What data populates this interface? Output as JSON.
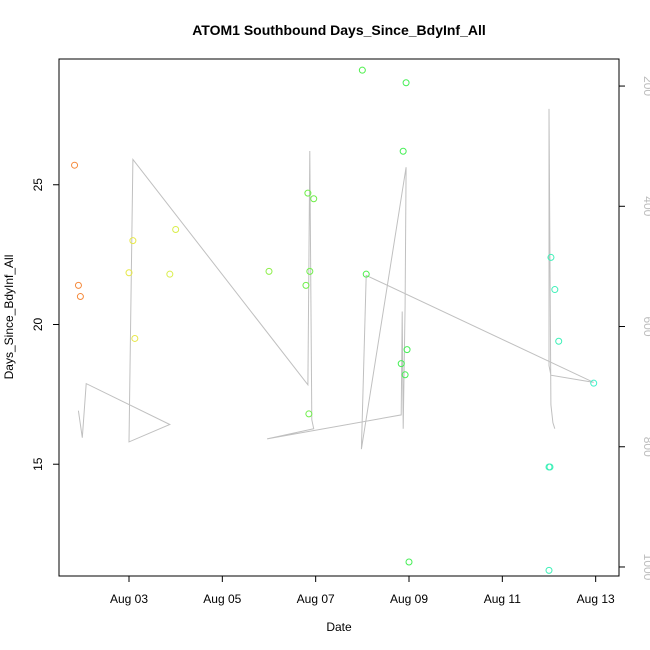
{
  "chart_data": {
    "type": "scatter",
    "title": "ATOM1 Southbound Days_Since_BdyInf_All",
    "xlabel": "Date",
    "ylabel": "Days_Since_BdyInf_All",
    "x_range_days": [
      "2013-08-01T12:00",
      "2013-08-13T12:00"
    ],
    "y_left_range": [
      11.0,
      29.5
    ],
    "y_right_range": [
      1015,
      155
    ],
    "y_right_reversed": true,
    "grid": false,
    "x_ticks": [
      {
        "date": "2013-08-03",
        "label": "Aug 03"
      },
      {
        "date": "2013-08-05",
        "label": "Aug 05"
      },
      {
        "date": "2013-08-07",
        "label": "Aug 07"
      },
      {
        "date": "2013-08-09",
        "label": "Aug 09"
      },
      {
        "date": "2013-08-11",
        "label": "Aug 11"
      },
      {
        "date": "2013-08-13",
        "label": "Aug 13"
      }
    ],
    "y_left_ticks": [
      {
        "value": 15,
        "label": "15"
      },
      {
        "value": 20,
        "label": "20"
      },
      {
        "value": 25,
        "label": "25"
      }
    ],
    "y_right_ticks": [
      {
        "value": 200,
        "label": "200"
      },
      {
        "value": 400,
        "label": "400"
      },
      {
        "value": 600,
        "label": "600"
      },
      {
        "value": 800,
        "label": "800"
      },
      {
        "value": 1000,
        "label": "1000"
      }
    ],
    "points": [
      {
        "x": "2013-08-01T20:00",
        "y": 25.7,
        "color": "#f58a3c"
      },
      {
        "x": "2013-08-01T22:00",
        "y": 21.4,
        "color": "#f58a3c"
      },
      {
        "x": "2013-08-01T23:00",
        "y": 21.0,
        "color": "#f58a3c"
      },
      {
        "x": "2013-08-03T00:00",
        "y": 21.85,
        "color": "#e7e84a"
      },
      {
        "x": "2013-08-03T02:00",
        "y": 23.0,
        "color": "#e7e84a"
      },
      {
        "x": "2013-08-03T03:00",
        "y": 19.5,
        "color": "#e7e84a"
      },
      {
        "x": "2013-08-03T21:00",
        "y": 21.8,
        "color": "#d9ee4a"
      },
      {
        "x": "2013-08-04T00:00",
        "y": 23.4,
        "color": "#d9ee4a"
      },
      {
        "x": "2013-08-06T00:00",
        "y": 21.9,
        "color": "#8def4a"
      },
      {
        "x": "2013-08-06T19:00",
        "y": 21.4,
        "color": "#6fef4a"
      },
      {
        "x": "2013-08-06T20:00",
        "y": 24.7,
        "color": "#6fef4a"
      },
      {
        "x": "2013-08-06T21:00",
        "y": 21.9,
        "color": "#6fef4a"
      },
      {
        "x": "2013-08-06T20:30",
        "y": 16.8,
        "color": "#6fef4a"
      },
      {
        "x": "2013-08-06T23:00",
        "y": 24.5,
        "color": "#6fef4a"
      },
      {
        "x": "2013-08-08T00:00",
        "y": 29.1,
        "color": "#4cef4a"
      },
      {
        "x": "2013-08-08T02:00",
        "y": 21.8,
        "color": "#4cef4a"
      },
      {
        "x": "2013-08-08T20:00",
        "y": 18.6,
        "color": "#45ef55"
      },
      {
        "x": "2013-08-08T21:00",
        "y": 26.2,
        "color": "#45ef55"
      },
      {
        "x": "2013-08-08T22:00",
        "y": 18.2,
        "color": "#45ef55"
      },
      {
        "x": "2013-08-08T22:30",
        "y": 28.65,
        "color": "#45ef55"
      },
      {
        "x": "2013-08-08T23:00",
        "y": 19.1,
        "color": "#45ef55"
      },
      {
        "x": "2013-08-09T00:00",
        "y": 11.5,
        "color": "#45ef55"
      },
      {
        "x": "2013-08-12T00:00",
        "y": 14.9,
        "color": "#3ef0b8"
      },
      {
        "x": "2013-08-12T00:30",
        "y": 14.9,
        "color": "#3ef0b8"
      },
      {
        "x": "2013-08-12T00:00",
        "y": 11.2,
        "color": "#3ef0b8"
      },
      {
        "x": "2013-08-12T01:00",
        "y": 22.4,
        "color": "#3ef0b8"
      },
      {
        "x": "2013-08-12T03:00",
        "y": 21.25,
        "color": "#3ef0b8"
      },
      {
        "x": "2013-08-12T05:00",
        "y": 19.4,
        "color": "#3ef0b8"
      },
      {
        "x": "2013-08-12T23:00",
        "y": 17.9,
        "color": "#3ef0c8"
      }
    ],
    "line_right_axis": {
      "color": "#c0c0c0",
      "points": [
        {
          "x": "2013-08-01T22:00",
          "y": 740
        },
        {
          "x": "2013-08-02T00:00",
          "y": 785
        },
        {
          "x": "2013-08-02T02:00",
          "y": 695
        },
        {
          "x": "2013-08-03T21:00",
          "y": 763
        },
        {
          "x": "2013-08-03T21:00",
          "y": 763
        },
        {
          "x": "2013-08-03T00:00",
          "y": 792
        },
        {
          "x": "2013-08-03T02:00",
          "y": 322
        },
        {
          "x": "2013-08-06T20:00",
          "y": 697
        },
        {
          "x": "2013-08-06T21:00",
          "y": 308
        },
        {
          "x": "2013-08-06T22:00",
          "y": 755
        },
        {
          "x": "2013-08-06T23:00",
          "y": 770
        },
        {
          "x": "2013-08-05T23:00",
          "y": 787
        },
        {
          "x": "2013-08-08T20:00",
          "y": 747
        },
        {
          "x": "2013-08-08T20:30",
          "y": 575
        },
        {
          "x": "2013-08-08T21:00",
          "y": 770
        },
        {
          "x": "2013-08-08T22:00",
          "y": 565
        },
        {
          "x": "2013-08-08T22:30",
          "y": 335
        },
        {
          "x": "2013-08-07T23:30",
          "y": 804
        },
        {
          "x": "2013-08-08T02:00",
          "y": 515
        },
        {
          "x": "2013-08-12T23:00",
          "y": 693
        },
        {
          "x": "2013-08-12T01:00",
          "y": 681
        },
        {
          "x": "2013-08-12T00:00",
          "y": 665
        },
        {
          "x": "2013-08-12T00:00",
          "y": 238
        },
        {
          "x": "2013-08-12T01:00",
          "y": 730
        },
        {
          "x": "2013-08-12T02:00",
          "y": 760
        },
        {
          "x": "2013-08-12T03:00",
          "y": 770
        }
      ]
    }
  }
}
